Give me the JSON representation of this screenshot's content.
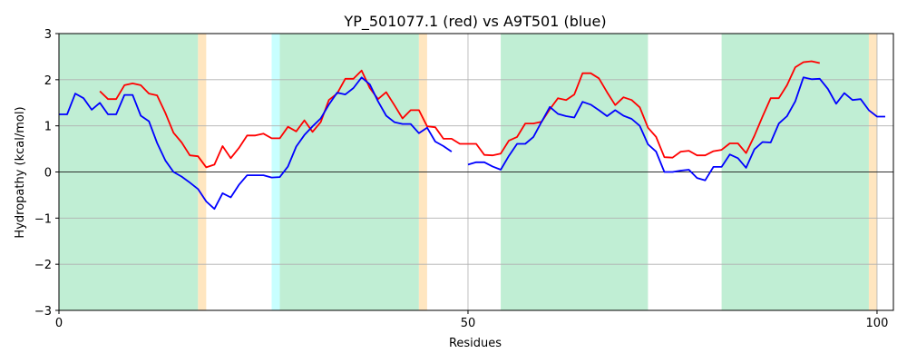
{
  "chart_data": {
    "type": "line",
    "title": "YP_501077.1 (red) vs A9T501 (blue)",
    "xlabel": "Residues",
    "ylabel": "Hydropathy (kcal/mol)",
    "xlim": [
      0,
      102
    ],
    "ylim": [
      -3,
      3
    ],
    "xticks": [
      0,
      50,
      100
    ],
    "yticks": [
      -3,
      -2,
      -1,
      0,
      1,
      2,
      3
    ],
    "grid": true,
    "colors": {
      "red_series": "#ff0000",
      "blue_series": "#0000ff",
      "green_region": "#c0eed4",
      "orange_region": "#ffe6c0",
      "cyan_region": "#c8ffff"
    },
    "regions": [
      {
        "start": 0,
        "end": 17,
        "color": "green"
      },
      {
        "start": 17,
        "end": 18,
        "color": "orange"
      },
      {
        "start": 26,
        "end": 27,
        "color": "cyan"
      },
      {
        "start": 27,
        "end": 44,
        "color": "green"
      },
      {
        "start": 44,
        "end": 45,
        "color": "orange"
      },
      {
        "start": 54,
        "end": 72,
        "color": "green"
      },
      {
        "start": 81,
        "end": 99,
        "color": "green"
      },
      {
        "start": 99,
        "end": 100,
        "color": "orange"
      }
    ],
    "series": [
      {
        "color": "red",
        "segments": [
          {
            "x": [
              5,
              6,
              7,
              8,
              9,
              10,
              11,
              12,
              13,
              14,
              15,
              16,
              17,
              18,
              19,
              20,
              21,
              22,
              23,
              24,
              25,
              26,
              27,
              28,
              29,
              30,
              31,
              32,
              33,
              34,
              35,
              36,
              37,
              38,
              39,
              40,
              41,
              42,
              43,
              44,
              45,
              46,
              47,
              48,
              49,
              50,
              51,
              52,
              53,
              54,
              55,
              56,
              57,
              58,
              59,
              60,
              61,
              62,
              63,
              64,
              65,
              66,
              67,
              68,
              69,
              70,
              71,
              72,
              73,
              74,
              75,
              76,
              77,
              78,
              79,
              80,
              81,
              82,
              83,
              84,
              85,
              86,
              87,
              88,
              89,
              90,
              91,
              92,
              93
            ],
            "y": [
              1.75,
              1.58,
              1.58,
              1.88,
              1.92,
              1.88,
              1.7,
              1.66,
              1.28,
              0.85,
              0.64,
              0.36,
              0.34,
              0.1,
              0.16,
              0.56,
              0.3,
              0.52,
              0.79,
              0.79,
              0.83,
              0.73,
              0.73,
              0.98,
              0.88,
              1.12,
              0.87,
              1.08,
              1.56,
              1.7,
              2.02,
              2.02,
              2.2,
              1.82,
              1.58,
              1.73,
              1.45,
              1.16,
              1.34,
              1.34,
              0.99,
              0.97,
              0.72,
              0.72,
              0.61,
              0.61,
              0.61,
              0.37,
              0.36,
              0.4,
              0.68,
              0.76,
              1.05,
              1.05,
              1.09,
              1.36,
              1.6,
              1.56,
              1.68,
              2.14,
              2.14,
              2.03,
              1.73,
              1.45,
              1.62,
              1.56,
              1.4,
              0.96,
              0.76,
              0.32,
              0.31,
              0.44,
              0.46,
              0.36,
              0.36,
              0.45,
              0.48,
              0.62,
              0.62,
              0.41,
              0.78,
              1.2,
              1.6,
              1.6,
              1.88,
              2.27,
              2.38,
              2.4,
              2.36
            ]
          }
        ]
      },
      {
        "color": "blue",
        "segments": [
          {
            "x": [
              0,
              1,
              2,
              3,
              4,
              5,
              6,
              7,
              8,
              9,
              10,
              11,
              12,
              13,
              14,
              15,
              16,
              17,
              18,
              19,
              20,
              21,
              22,
              23,
              24,
              25,
              26,
              27,
              28,
              29,
              30,
              31,
              32,
              33,
              34,
              35,
              36,
              37,
              38,
              39,
              40,
              41,
              42,
              43,
              44,
              45,
              46,
              47,
              48
            ],
            "y": [
              1.25,
              1.25,
              1.7,
              1.6,
              1.35,
              1.5,
              1.25,
              1.25,
              1.67,
              1.67,
              1.22,
              1.1,
              0.63,
              0.25,
              0.0,
              -0.1,
              -0.23,
              -0.37,
              -0.64,
              -0.8,
              -0.46,
              -0.55,
              -0.28,
              -0.07,
              -0.07,
              -0.07,
              -0.12,
              -0.11,
              0.12,
              0.55,
              0.8,
              0.99,
              1.16,
              1.46,
              1.72,
              1.68,
              1.82,
              2.05,
              1.9,
              1.53,
              1.22,
              1.08,
              1.04,
              1.04,
              0.84,
              0.96,
              0.66,
              0.56,
              0.44
            ]
          },
          {
            "x": [
              50,
              51,
              52,
              53,
              54,
              55,
              56,
              57,
              58,
              59,
              60,
              61,
              62,
              63,
              64,
              65,
              66,
              67,
              68,
              69,
              70,
              71,
              72,
              73,
              74,
              75,
              76,
              77,
              78,
              79,
              80,
              81,
              82,
              83,
              84,
              85,
              86,
              87,
              88,
              89,
              90,
              91,
              92,
              93,
              94,
              95,
              96,
              97,
              98,
              99,
              100,
              101
            ],
            "y": [
              0.16,
              0.21,
              0.21,
              0.12,
              0.05,
              0.35,
              0.61,
              0.61,
              0.76,
              1.09,
              1.41,
              1.26,
              1.21,
              1.18,
              1.52,
              1.46,
              1.34,
              1.21,
              1.34,
              1.22,
              1.15,
              1.0,
              0.6,
              0.44,
              0.0,
              0.0,
              0.03,
              0.05,
              -0.13,
              -0.18,
              0.11,
              0.11,
              0.38,
              0.3,
              0.09,
              0.49,
              0.65,
              0.64,
              1.05,
              1.21,
              1.53,
              2.05,
              2.01,
              2.02,
              1.8,
              1.48,
              1.71,
              1.56,
              1.58,
              1.34,
              1.2,
              1.2
            ]
          }
        ]
      }
    ]
  }
}
